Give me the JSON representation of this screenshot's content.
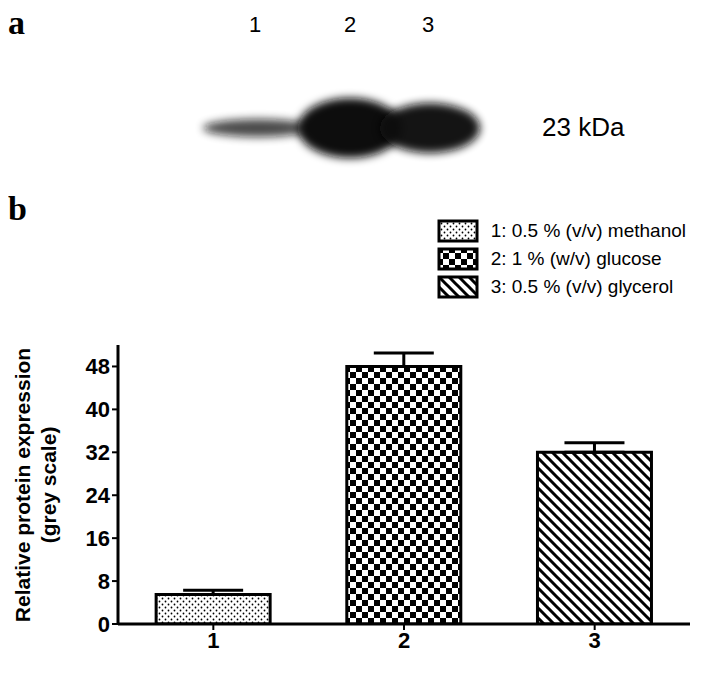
{
  "panel_labels": [
    "a",
    "b"
  ],
  "blot": {
    "lanes": [
      "1",
      "2",
      "3"
    ],
    "size_label": "23 kDa"
  },
  "chart_data": {
    "type": "bar",
    "categories": [
      "1",
      "2",
      "3"
    ],
    "values": [
      5.5,
      48,
      32
    ],
    "errors": [
      0.8,
      2.5,
      1.8
    ],
    "legend_labels": [
      "1: 0.5 % (v/v) methanol",
      "2: 1 % (w/v) glucose",
      "3: 0.5 % (v/v) glycerol"
    ],
    "ylabel": [
      "Relative protein expression",
      "(grey scale)"
    ],
    "ylim": [
      0,
      52
    ],
    "yticks": [
      0,
      8,
      16,
      24,
      32,
      40,
      48
    ],
    "color": "#000000",
    "grid": false,
    "legend": "upper right"
  }
}
